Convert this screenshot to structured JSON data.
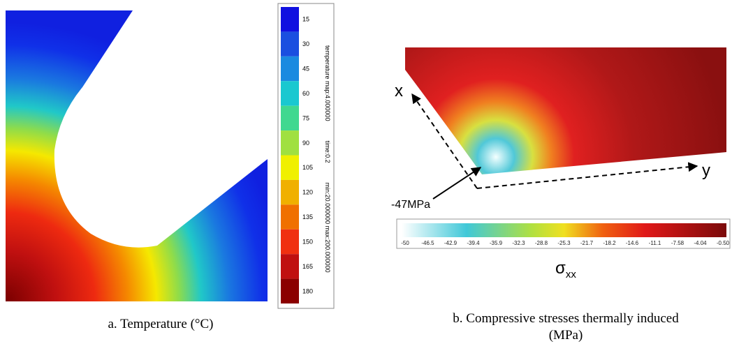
{
  "panels": [
    {
      "colorbar": {
        "labels": [
          "15",
          "30",
          "45",
          "60",
          "75",
          "90",
          "105",
          "120",
          "135",
          "150",
          "165",
          "180"
        ]
      },
      "side_text": [
        "temperature map:4.000000",
        "time:0.2",
        "min:20.000000 max:200.000000"
      ],
      "caption": "a.   Temperature (°C)"
    },
    {
      "axes": {
        "x": "x",
        "y": "y"
      },
      "annotation": "-47MPa",
      "colorbar": {
        "labels": [
          "-50",
          "-46.5",
          "-42.9",
          "-39.4",
          "-35.9",
          "-32.3",
          "-28.8",
          "-25.3",
          "-21.7",
          "-18.2",
          "-14.6",
          "-11.1",
          "-7.58",
          "-4.04",
          "-0.50"
        ],
        "symbol": "σ",
        "subscript": "xx"
      },
      "caption": "b.   Compressive stresses thermally induced (MPa)"
    }
  ]
}
